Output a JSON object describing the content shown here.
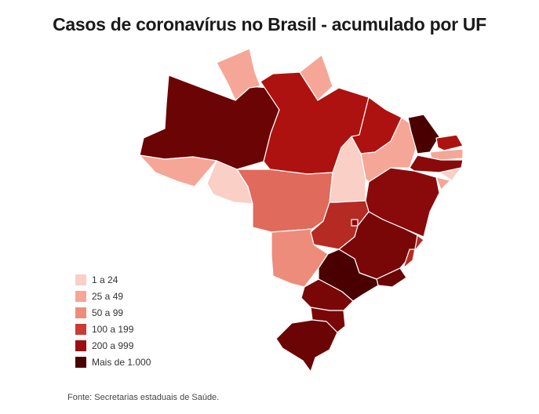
{
  "title": "Casos de coronavírus no Brasil - acumulado por UF",
  "legend": [
    {
      "label": "1 a 24",
      "color": "#f9cfc6"
    },
    {
      "label": "25 a 49",
      "color": "#f6a697"
    },
    {
      "label": "50 a 99",
      "color": "#ee8c7b"
    },
    {
      "label": "100 a 199",
      "color": "#cb3a33"
    },
    {
      "label": "200 a 999",
      "color": "#9b0f12"
    },
    {
      "label": "Mais de 1.000",
      "color": "#4a0000"
    }
  ],
  "source": "Fonte: Secretarias estaduais de Saúde.",
  "map_colors": {
    "AM": "#6b0405",
    "RR": "#f6a697",
    "AP": "#f6a697",
    "PA": "#ae1210",
    "AC": "#f6a697",
    "RO": "#f9cfc6",
    "MT": "#e06a5c",
    "TO": "#f9cfc6",
    "MA": "#ae1210",
    "PI": "#f6a697",
    "CE": "#4a0000",
    "RN": "#ae1210",
    "PB": "#f6a697",
    "PE": "#8a0a0c",
    "AL": "#f9cfc6",
    "SE": "#f6a697",
    "BA": "#8a0a0c",
    "GO": "#b52a22",
    "DF": "#8a0a0c",
    "MS": "#ee8c7b",
    "MG": "#7a0708",
    "ES": "#b52a22",
    "RJ": "#6b0405",
    "SP": "#4a0000",
    "PR": "#7a0708",
    "SC": "#7a0708",
    "RS": "#6b0405"
  }
}
